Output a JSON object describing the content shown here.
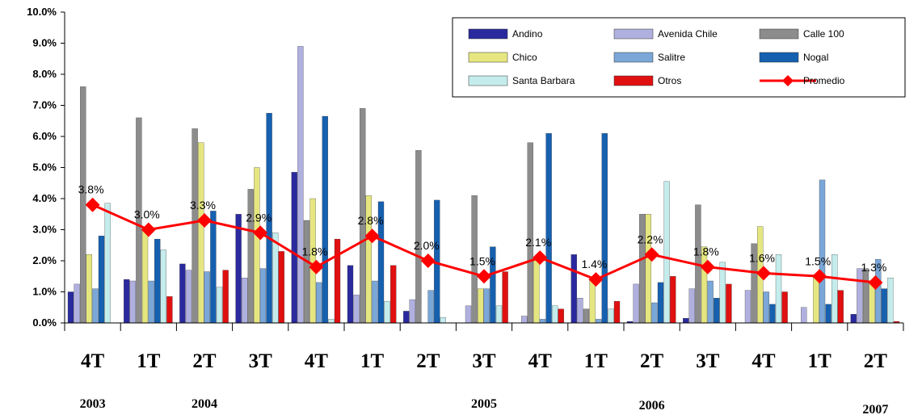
{
  "chart_data": {
    "type": "bar",
    "title": "",
    "xlabel": "",
    "ylabel": "",
    "ylim": [
      0,
      10
    ],
    "y_ticks": [
      "0.0%",
      "1.0%",
      "2.0%",
      "3.0%",
      "4.0%",
      "5.0%",
      "6.0%",
      "7.0%",
      "8.0%",
      "9.0%",
      "10.0%"
    ],
    "categories": [
      "4T",
      "1T",
      "2T",
      "3T",
      "4T",
      "1T",
      "2T",
      "3T",
      "4T",
      "1T",
      "2T",
      "3T",
      "4T",
      "1T",
      "2T"
    ],
    "years": [
      "2003",
      "2004",
      "2005",
      "2006",
      "2007"
    ],
    "series": [
      {
        "name": "Andino",
        "color": "#2a2a9e",
        "values": [
          1.0,
          1.4,
          1.9,
          3.5,
          4.85,
          1.85,
          0.38,
          0.0,
          0.0,
          2.2,
          0.05,
          0.15,
          0.0,
          0.0,
          0.28
        ]
      },
      {
        "name": "Avenida Chile",
        "color": "#b0b0e0",
        "values": [
          1.25,
          1.35,
          1.7,
          1.45,
          8.9,
          0.9,
          0.75,
          0.55,
          0.22,
          0.8,
          1.25,
          1.1,
          1.05,
          0.5,
          1.75
        ]
      },
      {
        "name": "Calle 100",
        "color": "#8c8c8c",
        "values": [
          7.6,
          6.6,
          6.25,
          4.3,
          3.3,
          6.9,
          5.55,
          4.1,
          5.8,
          0.45,
          3.5,
          3.8,
          2.55,
          0.0,
          1.75
        ]
      },
      {
        "name": "Chico",
        "color": "#e6e680",
        "values": [
          2.2,
          3.0,
          5.8,
          5.0,
          4.0,
          4.1,
          0.0,
          1.1,
          2.1,
          1.4,
          3.5,
          2.45,
          3.1,
          1.55,
          1.3
        ]
      },
      {
        "name": "Salitre",
        "color": "#7aa7d8",
        "values": [
          1.1,
          1.35,
          1.65,
          1.75,
          1.3,
          1.35,
          1.05,
          1.1,
          0.12,
          0.12,
          0.65,
          1.35,
          1.0,
          4.6,
          2.05
        ]
      },
      {
        "name": "Nogal",
        "color": "#1660b0",
        "values": [
          2.8,
          2.7,
          3.6,
          6.75,
          6.65,
          3.9,
          3.95,
          2.45,
          6.1,
          6.1,
          1.3,
          0.8,
          0.6,
          0.6,
          1.1
        ]
      },
      {
        "name": "Santa Barbara",
        "color": "#c4ecec",
        "values": [
          3.85,
          2.35,
          1.15,
          2.9,
          0.12,
          0.7,
          0.18,
          0.55,
          0.55,
          0.45,
          4.55,
          1.95,
          2.2,
          2.2,
          1.45
        ]
      },
      {
        "name": "Otros",
        "color": "#e01010",
        "values": [
          0.0,
          0.85,
          1.7,
          2.3,
          2.7,
          1.85,
          0.0,
          1.65,
          0.45,
          0.7,
          1.5,
          1.25,
          1.0,
          1.05,
          0.05
        ]
      },
      {
        "name": "Promedio",
        "type": "line",
        "color": "#ff0000",
        "values": [
          3.8,
          3.0,
          3.3,
          2.9,
          1.8,
          2.8,
          2.0,
          1.5,
          2.1,
          1.4,
          2.2,
          1.8,
          1.6,
          1.5,
          1.3
        ],
        "labels": [
          "3.8%",
          "3.0%",
          "3.3%",
          "2.9%",
          "1.8%",
          "2.8%",
          "2.0%",
          "1.5%",
          "2.1%",
          "1.4%",
          "2.2%",
          "1.8%",
          "1.6%",
          "1.5%",
          "1.3%"
        ]
      }
    ],
    "legend": "top-right",
    "grid": false
  }
}
